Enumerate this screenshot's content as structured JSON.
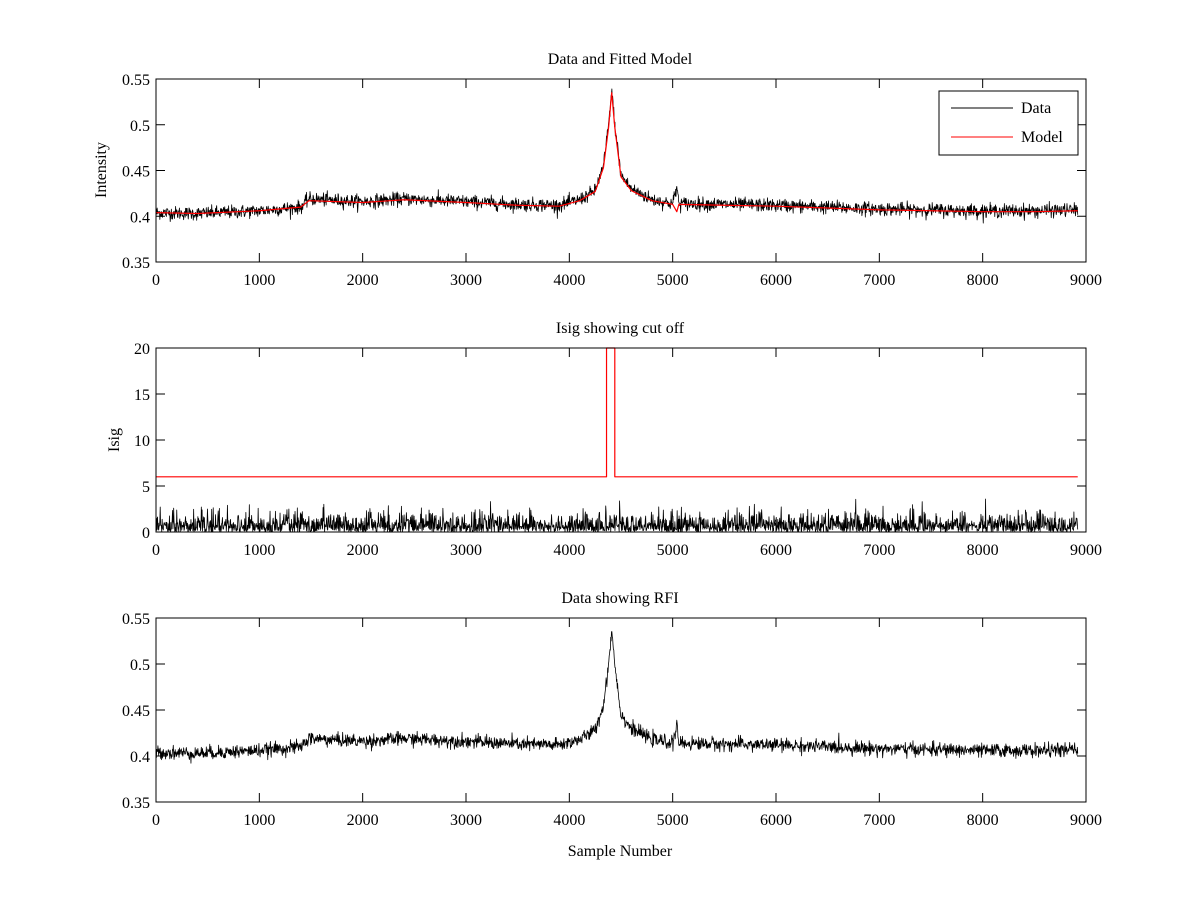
{
  "figure": {
    "background": "#ffffff"
  },
  "chart_data": [
    {
      "type": "line",
      "title": "Data and Fitted Model",
      "xlabel": "",
      "ylabel": "Intensity",
      "xlim": [
        0,
        9000
      ],
      "ylim": [
        0.35,
        0.55
      ],
      "xticks": [
        "0",
        "1000",
        "2000",
        "3000",
        "4000",
        "5000",
        "6000",
        "7000",
        "8000",
        "9000"
      ],
      "yticks": [
        "0.35",
        "0.4",
        "0.45",
        "0.5",
        "0.55"
      ],
      "legend_position": "top-right",
      "legend": [
        {
          "label": "Data",
          "color": "#000000"
        },
        {
          "label": "Model",
          "color": "#ff0000"
        }
      ],
      "series": [
        {
          "name": "Data",
          "color": "#000000",
          "style": "noisy",
          "noise_amplitude": 0.008,
          "x": [
            0,
            400,
            1000,
            1400,
            1480,
            2000,
            2400,
            3000,
            3500,
            3900,
            4100,
            4250,
            4330,
            4380,
            4410,
            4440,
            4500,
            4600,
            4800,
            5000,
            5040,
            5060,
            5500,
            6000,
            6500,
            7000,
            7500,
            8000,
            8500,
            8920
          ],
          "y": [
            0.404,
            0.403,
            0.406,
            0.41,
            0.419,
            0.416,
            0.419,
            0.416,
            0.413,
            0.412,
            0.418,
            0.428,
            0.455,
            0.5,
            0.538,
            0.5,
            0.445,
            0.43,
            0.418,
            0.414,
            0.432,
            0.414,
            0.413,
            0.412,
            0.41,
            0.408,
            0.407,
            0.406,
            0.406,
            0.407
          ]
        },
        {
          "name": "Model",
          "color": "#ff0000",
          "style": "smooth",
          "x": [
            0,
            400,
            1000,
            1400,
            1480,
            2000,
            2400,
            3000,
            3500,
            3900,
            4100,
            4250,
            4330,
            4380,
            4410,
            4440,
            4500,
            4600,
            4800,
            5000,
            5040,
            5060,
            5500,
            6000,
            6500,
            7000,
            7500,
            8000,
            8500,
            8920
          ],
          "y": [
            0.404,
            0.403,
            0.406,
            0.41,
            0.417,
            0.415,
            0.418,
            0.415,
            0.412,
            0.411,
            0.417,
            0.427,
            0.453,
            0.497,
            0.535,
            0.497,
            0.443,
            0.428,
            0.417,
            0.413,
            0.405,
            0.413,
            0.412,
            0.411,
            0.409,
            0.407,
            0.406,
            0.405,
            0.405,
            0.406
          ]
        }
      ]
    },
    {
      "type": "line",
      "title": "Isig showing cut off",
      "xlabel": "",
      "ylabel": "Isig",
      "xlim": [
        0,
        9000
      ],
      "ylim": [
        0,
        20
      ],
      "xticks": [
        "0",
        "1000",
        "2000",
        "3000",
        "4000",
        "5000",
        "6000",
        "7000",
        "8000",
        "9000"
      ],
      "yticks": [
        "0",
        "5",
        "10",
        "15",
        "20"
      ],
      "series": [
        {
          "name": "Isig",
          "color": "#000000",
          "style": "halfnormal",
          "noise_amplitude": 1.0,
          "x": [
            0,
            8920
          ],
          "y": [
            0,
            0
          ]
        },
        {
          "name": "Cut off",
          "color": "#ff0000",
          "style": "step",
          "x": [
            0,
            4360,
            4360,
            4440,
            4440,
            8920
          ],
          "y": [
            6,
            6,
            20,
            20,
            6,
            6
          ]
        }
      ]
    },
    {
      "type": "line",
      "title": "Data showing RFI",
      "xlabel": "Sample Number",
      "ylabel": "",
      "xlim": [
        0,
        9000
      ],
      "ylim": [
        0.35,
        0.55
      ],
      "xticks": [
        "0",
        "1000",
        "2000",
        "3000",
        "4000",
        "5000",
        "6000",
        "7000",
        "8000",
        "9000"
      ],
      "yticks": [
        "0.35",
        "0.4",
        "0.45",
        "0.5",
        "0.55"
      ],
      "series": [
        {
          "name": "Data",
          "color": "#000000",
          "style": "noisy",
          "noise_amplitude": 0.008,
          "x": [
            0,
            400,
            1000,
            1400,
            1480,
            2000,
            2400,
            3000,
            3500,
            3900,
            4100,
            4250,
            4330,
            4380,
            4410,
            4440,
            4500,
            4600,
            4800,
            5000,
            5040,
            5060,
            5500,
            6000,
            6500,
            7000,
            7500,
            8000,
            8500,
            8920
          ],
          "y": [
            0.404,
            0.403,
            0.406,
            0.41,
            0.419,
            0.416,
            0.419,
            0.416,
            0.413,
            0.412,
            0.418,
            0.428,
            0.455,
            0.5,
            0.538,
            0.5,
            0.445,
            0.43,
            0.418,
            0.414,
            0.432,
            0.414,
            0.413,
            0.412,
            0.41,
            0.408,
            0.407,
            0.406,
            0.406,
            0.407
          ]
        }
      ]
    }
  ]
}
